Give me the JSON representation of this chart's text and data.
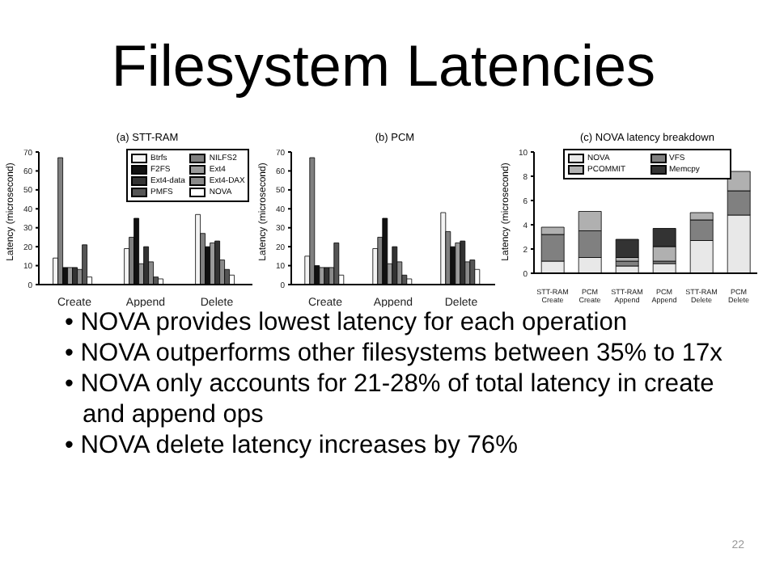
{
  "chart_data": [
    {
      "type": "other",
      "title": "Filesystem Latencies"
    },
    {
      "type": "bar",
      "title": "(a) STT-RAM",
      "ylabel": "Latency (microsecond)",
      "categories": [
        "Create",
        "Append",
        "Delete"
      ],
      "ylim": [
        0,
        70
      ],
      "yticks": [
        0,
        10,
        20,
        30,
        40,
        50,
        60,
        70
      ],
      "legend": "top right",
      "series": [
        {
          "name": "Btrfs",
          "color": "#f4f4f4",
          "values": [
            14,
            19,
            37
          ]
        },
        {
          "name": "NILFS2",
          "color": "#808080",
          "values": [
            67,
            25,
            27
          ]
        },
        {
          "name": "F2FS",
          "color": "#111111",
          "values": [
            9,
            35,
            20
          ]
        },
        {
          "name": "Ext4",
          "color": "#9a9a9a",
          "values": [
            9,
            11,
            22
          ]
        },
        {
          "name": "Ext4-data",
          "color": "#333333",
          "values": [
            9,
            20,
            23
          ]
        },
        {
          "name": "Ext4-DAX",
          "color": "#8a8a8a",
          "values": [
            8,
            12,
            13
          ]
        },
        {
          "name": "PMFS",
          "color": "#555555",
          "values": [
            21,
            4,
            8
          ]
        },
        {
          "name": "NOVA",
          "color": "#ffffff",
          "values": [
            4,
            3,
            5
          ]
        }
      ]
    },
    {
      "type": "bar",
      "title": "(b) PCM",
      "ylabel": "Latency (microsecond)",
      "categories": [
        "Create",
        "Append",
        "Delete"
      ],
      "ylim": [
        0,
        70
      ],
      "yticks": [
        0,
        10,
        20,
        30,
        40,
        50,
        60,
        70
      ],
      "series": [
        {
          "color": "#f4f4f4",
          "values": [
            15,
            19,
            38
          ]
        },
        {
          "color": "#808080",
          "values": [
            67,
            25,
            28
          ]
        },
        {
          "color": "#111111",
          "values": [
            10,
            35,
            20
          ]
        },
        {
          "color": "#9a9a9a",
          "values": [
            9,
            11,
            22
          ]
        },
        {
          "color": "#333333",
          "values": [
            9,
            20,
            23
          ]
        },
        {
          "color": "#8a8a8a",
          "values": [
            9,
            12,
            12
          ]
        },
        {
          "color": "#555555",
          "values": [
            22,
            5,
            13
          ]
        },
        {
          "color": "#ffffff",
          "values": [
            5,
            3,
            8
          ]
        }
      ]
    },
    {
      "type": "bar",
      "title": "(c) NOVA latency breakdown",
      "ylabel": "Latency (microsecond)",
      "categories": [
        "STT-RAM Create",
        "PCM Create",
        "STT-RAM Append",
        "PCM Append",
        "STT-RAM Delete",
        "PCM Delete"
      ],
      "ylim": [
        0,
        10
      ],
      "yticks": [
        0,
        2,
        4,
        6,
        8,
        10
      ],
      "stacked": true,
      "legend": "top",
      "series": [
        {
          "name": "NOVA",
          "color": "#e8e8e8",
          "values": [
            1.0,
            1.3,
            0.6,
            0.8,
            2.7,
            4.8
          ]
        },
        {
          "name": "VFS",
          "color": "#808080",
          "values": [
            2.2,
            2.2,
            0.4,
            0.2,
            1.7,
            2.0
          ]
        },
        {
          "name": "PCOMMIT",
          "color": "#b0b0b0",
          "values": [
            0.6,
            1.6,
            0.3,
            1.2,
            0.6,
            1.6
          ]
        },
        {
          "name": "Memcpy",
          "color": "#333333",
          "values": [
            0,
            0,
            1.5,
            1.5,
            0,
            0
          ]
        }
      ]
    },
    {
      "type": "other",
      "annotations": [
        "• NOVA provides lowest latency for each operation",
        "• NOVA outperforms other filesystems between 35% to 17x",
        "• NOVA only accounts for 21-28% of total latency in create and append ops",
        "• NOVA delete latency increases by 76%",
        "22"
      ]
    }
  ]
}
